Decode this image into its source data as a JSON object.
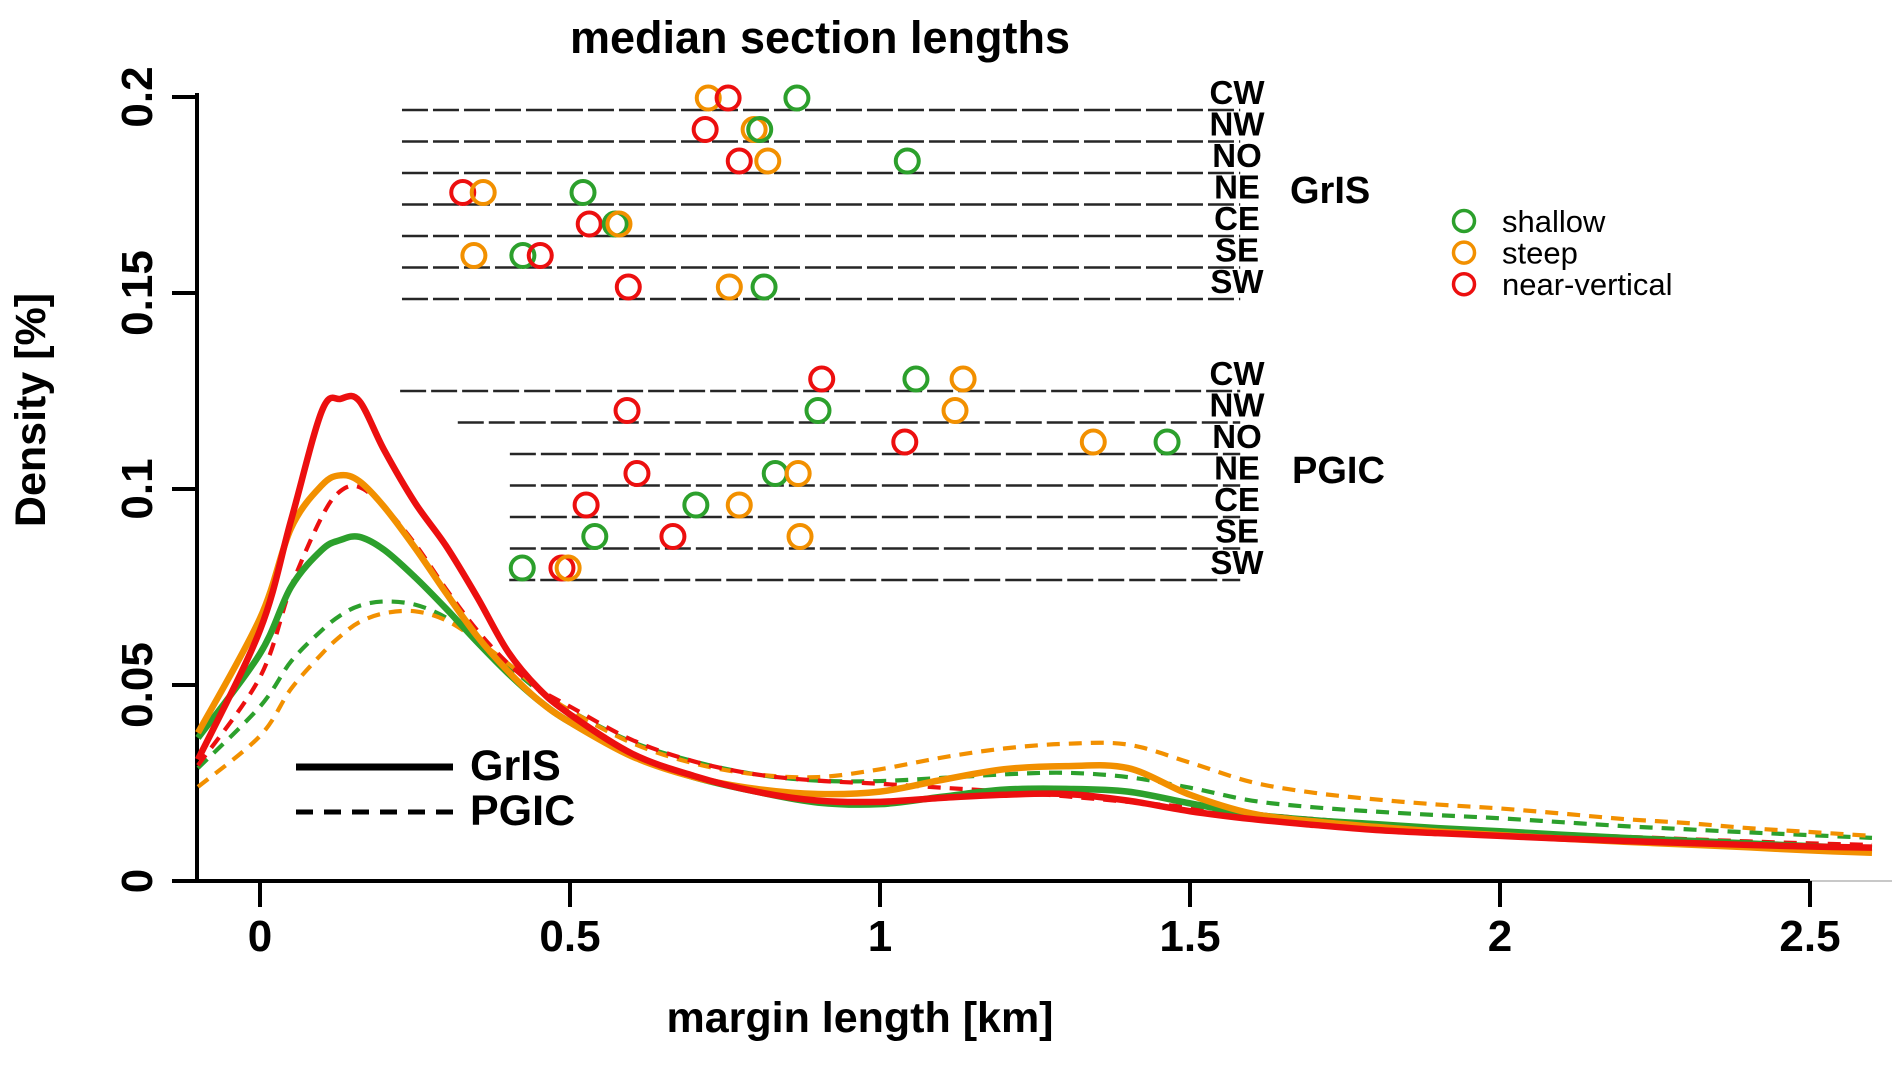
{
  "chart_data": {
    "type": "line",
    "title": "",
    "xlabel": "margin length [km]",
    "ylabel": "Density [%]",
    "xlim": [
      -0.1,
      2.6
    ],
    "ylim": [
      0,
      0.2
    ],
    "grid": false,
    "x_tick_labels": [
      "0",
      "0.5",
      "1",
      "1.5",
      "2",
      "2.5"
    ],
    "x_tick_values": [
      0,
      0.5,
      1,
      1.5,
      2,
      2.5
    ],
    "y_tick_labels": [
      "0",
      "0.05",
      "0.1",
      "0.15",
      "0.2"
    ],
    "y_tick_values": [
      0,
      0.05,
      0.1,
      0.15,
      0.2
    ],
    "colors": {
      "shallow": "#2CA02C",
      "steep": "#F29000",
      "near_vertical": "#EC0F0F",
      "axis": "#000000",
      "inset_line": "#262626"
    },
    "x": [
      -0.1,
      0,
      0.05,
      0.1,
      0.13,
      0.16,
      0.2,
      0.25,
      0.3,
      0.35,
      0.4,
      0.45,
      0.5,
      0.6,
      0.7,
      0.8,
      0.9,
      1.0,
      1.1,
      1.2,
      1.3,
      1.4,
      1.5,
      1.6,
      1.7,
      1.8,
      1.9,
      2.0,
      2.1,
      2.2,
      2.3,
      2.4,
      2.5,
      2.6
    ],
    "series": [
      {
        "name": "GrIS shallow",
        "group": "GrIS",
        "slope": "shallow",
        "style": "solid",
        "values": [
          0.0365,
          0.058,
          0.075,
          0.0845,
          0.087,
          0.0878,
          0.0845,
          0.0775,
          0.0695,
          0.061,
          0.053,
          0.046,
          0.0405,
          0.032,
          0.0265,
          0.0228,
          0.02,
          0.0196,
          0.0215,
          0.0233,
          0.0235,
          0.0228,
          0.0198,
          0.017,
          0.0155,
          0.0145,
          0.0135,
          0.0127,
          0.0118,
          0.011,
          0.0103,
          0.0096,
          0.0089,
          0.0083
        ]
      },
      {
        "name": "GrIS steep",
        "group": "GrIS",
        "slope": "steep",
        "style": "solid",
        "values": [
          0.0378,
          0.067,
          0.09,
          0.101,
          0.1035,
          0.102,
          0.0955,
          0.085,
          0.0735,
          0.0625,
          0.0535,
          0.046,
          0.0405,
          0.0318,
          0.0265,
          0.0235,
          0.0222,
          0.0228,
          0.0258,
          0.0285,
          0.0293,
          0.0288,
          0.022,
          0.0172,
          0.0152,
          0.0138,
          0.0126,
          0.0117,
          0.0108,
          0.01,
          0.0093,
          0.0086,
          0.0078,
          0.0072
        ]
      },
      {
        "name": "GrIS near-vertical",
        "group": "GrIS",
        "slope": "near_vertical",
        "style": "solid",
        "values": [
          0.031,
          0.064,
          0.092,
          0.12,
          0.123,
          0.1225,
          0.11,
          0.0965,
          0.0855,
          0.0725,
          0.0585,
          0.049,
          0.0425,
          0.0325,
          0.0268,
          0.0228,
          0.0205,
          0.0202,
          0.0212,
          0.022,
          0.0222,
          0.0205,
          0.0178,
          0.0158,
          0.0143,
          0.013,
          0.0122,
          0.0115,
          0.0108,
          0.0102,
          0.0097,
          0.0092,
          0.0088,
          0.0085
        ]
      },
      {
        "name": "PGIC shallow",
        "group": "PGIC",
        "slope": "shallow",
        "style": "dashed",
        "values": [
          0.0288,
          0.0445,
          0.056,
          0.064,
          0.0678,
          0.0702,
          0.0713,
          0.0705,
          0.0672,
          0.0615,
          0.055,
          0.0485,
          0.0435,
          0.0355,
          0.0305,
          0.0272,
          0.0256,
          0.0255,
          0.0263,
          0.0272,
          0.0276,
          0.0265,
          0.0238,
          0.0205,
          0.0188,
          0.0177,
          0.0168,
          0.016,
          0.015,
          0.014,
          0.0132,
          0.0124,
          0.0117,
          0.011
        ]
      },
      {
        "name": "PGIC steep",
        "group": "PGIC",
        "slope": "steep",
        "style": "dashed",
        "values": [
          0.024,
          0.037,
          0.049,
          0.058,
          0.0625,
          0.066,
          0.0683,
          0.0688,
          0.0665,
          0.0615,
          0.0555,
          0.049,
          0.0435,
          0.0352,
          0.03,
          0.0272,
          0.0265,
          0.0285,
          0.0315,
          0.0338,
          0.035,
          0.0348,
          0.0302,
          0.0252,
          0.0225,
          0.0208,
          0.0195,
          0.0185,
          0.0172,
          0.0158,
          0.0148,
          0.0135,
          0.0125,
          0.0115
        ]
      },
      {
        "name": "PGIC near-vertical",
        "group": "PGIC",
        "slope": "near_vertical",
        "style": "dashed",
        "values": [
          0.0295,
          0.052,
          0.075,
          0.093,
          0.0995,
          0.1005,
          0.0955,
          0.086,
          0.0745,
          0.064,
          0.0555,
          0.049,
          0.0445,
          0.036,
          0.0305,
          0.0272,
          0.0256,
          0.0248,
          0.0238,
          0.0228,
          0.0216,
          0.0202,
          0.0188,
          0.0172,
          0.0158,
          0.0146,
          0.0136,
          0.0128,
          0.012,
          0.0113,
          0.0107,
          0.0101,
          0.0096,
          0.0092
        ]
      }
    ],
    "line_legend": {
      "items": [
        {
          "label": "GrIS",
          "style": "solid"
        },
        {
          "label": "PGIC",
          "style": "dashed"
        }
      ]
    },
    "slope_legend": {
      "items": [
        {
          "label": "shallow",
          "slope": "shallow"
        },
        {
          "label": "steep",
          "slope": "steep"
        },
        {
          "label": "near-vertical",
          "slope": "near_vertical"
        }
      ]
    },
    "inset": {
      "title": "median section lengths",
      "type": "strip",
      "line_end_km": 1.581,
      "groups": [
        {
          "label": "GrIS",
          "rows": [
            {
              "label": "CW",
              "line_start_km": 0.229,
              "points": [
                {
                  "slope": "steep",
                  "km": 0.723
                },
                {
                  "slope": "near_vertical",
                  "km": 0.755
                },
                {
                  "slope": "shallow",
                  "km": 0.866
                }
              ]
            },
            {
              "label": "NW",
              "line_start_km": 0.229,
              "points": [
                {
                  "slope": "near_vertical",
                  "km": 0.718
                },
                {
                  "slope": "steep",
                  "km": 0.797
                },
                {
                  "slope": "shallow",
                  "km": 0.806
                }
              ]
            },
            {
              "label": "NO",
              "line_start_km": 0.229,
              "points": [
                {
                  "slope": "near_vertical",
                  "km": 0.773
                },
                {
                  "slope": "steep",
                  "km": 0.819
                },
                {
                  "slope": "shallow",
                  "km": 1.044
                }
              ]
            },
            {
              "label": "NE",
              "line_start_km": 0.229,
              "points": [
                {
                  "slope": "near_vertical",
                  "km": 0.327
                },
                {
                  "slope": "steep",
                  "km": 0.36
                },
                {
                  "slope": "shallow",
                  "km": 0.521
                }
              ]
            },
            {
              "label": "CE",
              "line_start_km": 0.229,
              "points": [
                {
                  "slope": "near_vertical",
                  "km": 0.531
                },
                {
                  "slope": "shallow",
                  "km": 0.573
                },
                {
                  "slope": "steep",
                  "km": 0.579
                }
              ]
            },
            {
              "label": "SE",
              "line_start_km": 0.229,
              "points": [
                {
                  "slope": "steep",
                  "km": 0.345
                },
                {
                  "slope": "shallow",
                  "km": 0.424
                },
                {
                  "slope": "near_vertical",
                  "km": 0.452
                }
              ]
            },
            {
              "label": "SW",
              "line_start_km": 0.229,
              "points": [
                {
                  "slope": "near_vertical",
                  "km": 0.594
                },
                {
                  "slope": "steep",
                  "km": 0.757
                },
                {
                  "slope": "shallow",
                  "km": 0.813
                }
              ]
            }
          ]
        },
        {
          "label": "PGIC",
          "rows": [
            {
              "label": "CW",
              "line_start_km": 0.226,
              "points": [
                {
                  "slope": "near_vertical",
                  "km": 0.906
                },
                {
                  "slope": "shallow",
                  "km": 1.058
                },
                {
                  "slope": "steep",
                  "km": 1.134
                }
              ]
            },
            {
              "label": "NW",
              "line_start_km": 0.319,
              "points": [
                {
                  "slope": "near_vertical",
                  "km": 0.592
                },
                {
                  "slope": "shallow",
                  "km": 0.9
                },
                {
                  "slope": "steep",
                  "km": 1.121
                }
              ]
            },
            {
              "label": "NO",
              "line_start_km": 0.403,
              "points": [
                {
                  "slope": "near_vertical",
                  "km": 1.04
                },
                {
                  "slope": "steep",
                  "km": 1.344
                },
                {
                  "slope": "shallow",
                  "km": 1.463
                }
              ]
            },
            {
              "label": "NE",
              "line_start_km": 0.403,
              "points": [
                {
                  "slope": "near_vertical",
                  "km": 0.608
                },
                {
                  "slope": "shallow",
                  "km": 0.831
                },
                {
                  "slope": "steep",
                  "km": 0.868
                }
              ]
            },
            {
              "label": "CE",
              "line_start_km": 0.403,
              "points": [
                {
                  "slope": "near_vertical",
                  "km": 0.526
                },
                {
                  "slope": "shallow",
                  "km": 0.703
                },
                {
                  "slope": "steep",
                  "km": 0.773
                }
              ]
            },
            {
              "label": "SE",
              "line_start_km": 0.403,
              "points": [
                {
                  "slope": "shallow",
                  "km": 0.54
                },
                {
                  "slope": "near_vertical",
                  "km": 0.666
                },
                {
                  "slope": "steep",
                  "km": 0.871
                }
              ]
            },
            {
              "label": "SW",
              "line_start_km": 0.402,
              "points": [
                {
                  "slope": "shallow",
                  "km": 0.423
                },
                {
                  "slope": "near_vertical",
                  "km": 0.487
                },
                {
                  "slope": "steep",
                  "km": 0.497
                }
              ]
            }
          ]
        }
      ]
    }
  }
}
